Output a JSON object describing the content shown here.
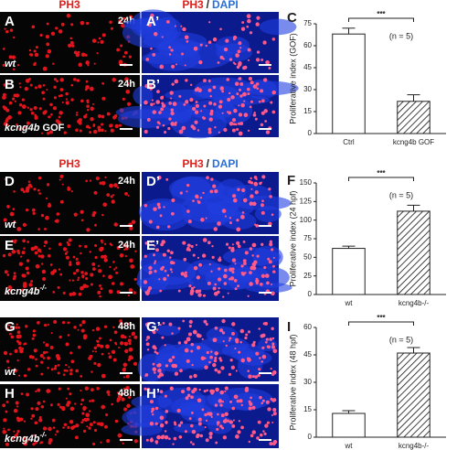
{
  "headers": [
    {
      "left": "PH3",
      "right": "PH3",
      "sep": "/",
      "dapi": "DAPI"
    },
    {
      "left": "PH3",
      "right": "PH3",
      "sep": "/",
      "dapi": "DAPI"
    }
  ],
  "panels": [
    {
      "label": "A",
      "time": "24h",
      "genotype": "wt"
    },
    {
      "label": "A’"
    },
    {
      "label": "B",
      "time": "24h",
      "genotype": "kcng4b",
      "genotype_suffix": "GOF"
    },
    {
      "label": "B’"
    },
    {
      "label": "D",
      "time": "24h",
      "genotype": "wt"
    },
    {
      "label": "D’"
    },
    {
      "label": "E",
      "time": "24h",
      "genotype": "kcng4b",
      "genotype_sup": "-/-"
    },
    {
      "label": "E’"
    },
    {
      "label": "G",
      "time": "48h",
      "genotype": "wt"
    },
    {
      "label": "G’"
    },
    {
      "label": "H",
      "time": "48h",
      "genotype": "kcng4b",
      "genotype_sup": "-/-"
    },
    {
      "label": "H’"
    }
  ],
  "chart_data": [
    {
      "type": "bar",
      "label": "C",
      "ylabel": "Proliferative index (GOF)",
      "categories": [
        "Ctrl",
        "kcng4b GOF"
      ],
      "values": [
        68,
        22
      ],
      "errors": [
        4,
        4.5
      ],
      "hatch": [
        false,
        true
      ],
      "ylim": [
        0,
        75
      ],
      "yticks": [
        0,
        15,
        30,
        45,
        60,
        75
      ],
      "significance": "***",
      "annotation": "(n = 5)"
    },
    {
      "type": "bar",
      "label": "F",
      "ylabel": "Proliferative index (24 hpf)",
      "categories": [
        "wt",
        "kcng4b-/-"
      ],
      "values": [
        62,
        112
      ],
      "errors": [
        3,
        8
      ],
      "hatch": [
        false,
        true
      ],
      "ylim": [
        0,
        150
      ],
      "yticks": [
        0,
        25,
        50,
        75,
        100,
        125,
        150
      ],
      "significance": "***",
      "annotation": "(n = 5)"
    },
    {
      "type": "bar",
      "label": "I",
      "ylabel": "Proliferative index (48 hpf)",
      "categories": [
        "wt",
        "kcng4b-/-"
      ],
      "values": [
        13,
        46
      ],
      "errors": [
        1.5,
        3
      ],
      "hatch": [
        false,
        true
      ],
      "ylim": [
        0,
        60
      ],
      "yticks": [
        0,
        15,
        30,
        45,
        60
      ],
      "significance": "***",
      "annotation": "(n = 5)"
    }
  ]
}
